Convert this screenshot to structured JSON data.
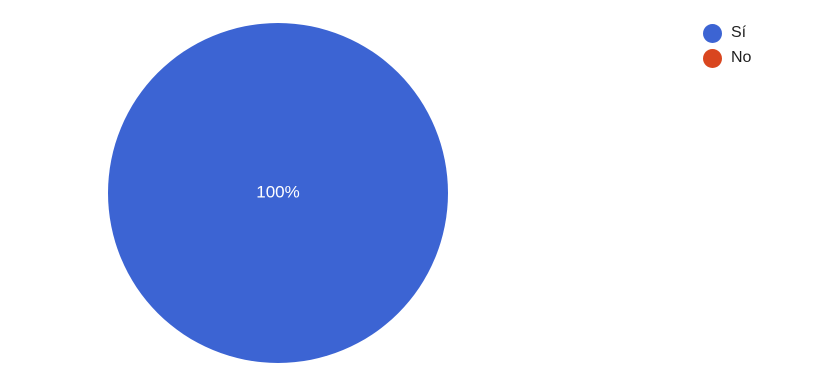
{
  "chart_data": {
    "type": "pie",
    "categories": [
      "Sí",
      "No"
    ],
    "values": [
      100,
      0
    ],
    "colors": [
      "#3c64d3",
      "#d9461f"
    ],
    "slice_labels": [
      "100%",
      ""
    ],
    "legend": {
      "placement": "top-right",
      "entries": [
        {
          "label": "Sí",
          "color": "#3c64d3"
        },
        {
          "label": "No",
          "color": "#d9461f"
        }
      ]
    }
  }
}
